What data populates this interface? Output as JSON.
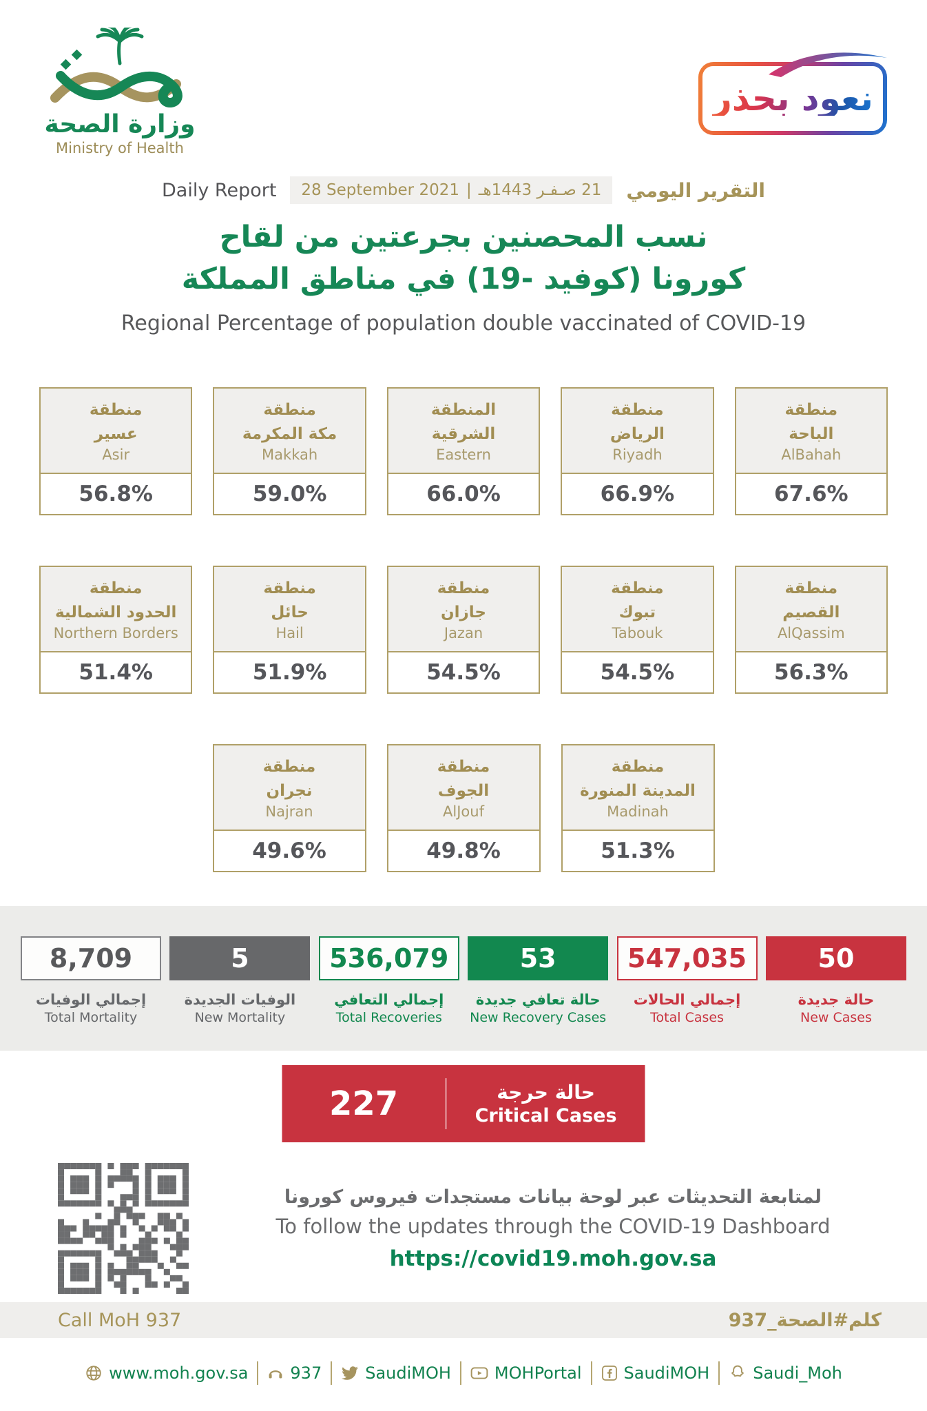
{
  "colors": {
    "green": "#168756",
    "gold": "#a6945f",
    "red": "#c8333f",
    "dark_gray": "#58595b"
  },
  "logo": {
    "title_ar": "وزارة الصحة",
    "title_en": "Ministry of Health"
  },
  "badge": {
    "text_ar": "نعود بحذر"
  },
  "report_bar": {
    "label_en": "Daily Report",
    "date_en": "28 September 2021",
    "date_sep": "|",
    "date_ar": "21 صـفـر 1443هـ",
    "label_ar": "التقرير اليومي"
  },
  "title": {
    "ar_line1": "نسب المحصنين بجرعتين من لقاح",
    "ar_line2": "كورونا (كوفيد -19) في مناطق المملكة",
    "en": "Regional Percentage of population double vaccinated of COVID-19"
  },
  "regions": {
    "cards": [
      {
        "ar1": "منطقة",
        "ar2": "عسير",
        "en": "Asir",
        "value": "56.8%"
      },
      {
        "ar1": "منطقة",
        "ar2": "مكة المكرمة",
        "en": "Makkah",
        "value": "59.0%"
      },
      {
        "ar1": "المنطقة",
        "ar2": "الشرقية",
        "en": "Eastern",
        "value": "66.0%"
      },
      {
        "ar1": "منطقة",
        "ar2": "الرياض",
        "en": "Riyadh",
        "value": "66.9%"
      },
      {
        "ar1": "منطقة",
        "ar2": "الباحة",
        "en": "AlBahah",
        "value": "67.6%"
      },
      {
        "ar1": "منطقة",
        "ar2": "الحدود الشمالية",
        "en": "Northern Borders",
        "value": "51.4%"
      },
      {
        "ar1": "منطقة",
        "ar2": "حائل",
        "en": "Hail",
        "value": "51.9%"
      },
      {
        "ar1": "منطقة",
        "ar2": "جازان",
        "en": "Jazan",
        "value": "54.5%"
      },
      {
        "ar1": "منطقة",
        "ar2": "تبوك",
        "en": "Tabouk",
        "value": "54.5%"
      },
      {
        "ar1": "منطقة",
        "ar2": "القصيم",
        "en": "AlQassim",
        "value": "56.3%"
      },
      {
        "ar1": "منطقة",
        "ar2": "نجران",
        "en": "Najran",
        "value": "49.6%"
      },
      {
        "ar1": "منطقة",
        "ar2": "الجوف",
        "en": "AlJouf",
        "value": "49.8%"
      },
      {
        "ar1": "منطقة",
        "ar2": "المدينة المنورة",
        "en": "Madinah",
        "value": "51.3%"
      }
    ]
  },
  "stats": {
    "items": [
      {
        "value": "8,709",
        "ar": "إجمالي الوفيات",
        "en": "Total Mortality"
      },
      {
        "value": "5",
        "ar": "الوفيات الجديدة",
        "en": "New Mortality"
      },
      {
        "value": "536,079",
        "ar": "إجمالي التعافي",
        "en": "Total Recoveries"
      },
      {
        "value": "53",
        "ar": "حالة تعافي جديدة",
        "en": "New Recovery Cases"
      },
      {
        "value": "547,035",
        "ar": "إجمالي الحالات",
        "en": "Total Cases"
      },
      {
        "value": "50",
        "ar": "حالة جديدة",
        "en": "New Cases"
      }
    ]
  },
  "critical": {
    "value": "227",
    "ar": "حالة حرجة",
    "en": "Critical Cases"
  },
  "dashboard": {
    "ar": "لمتابعة التحديثات عبر لوحة بيانات مستجدات فيروس كورونا",
    "en": "To follow the updates through the COVID-19 Dashboard",
    "url": "https://covid19.moh.gov.sa"
  },
  "footer": {
    "call_en": "Call MoH 937",
    "hashtag_ar": "كلم#الصحة_937"
  },
  "social": {
    "items": [
      {
        "icon": "globe-icon",
        "label": "www.moh.gov.sa"
      },
      {
        "icon": "phone-icon",
        "label": "937"
      },
      {
        "icon": "twitter-icon",
        "label": "SaudiMOH"
      },
      {
        "icon": "youtube-icon",
        "label": "MOHPortal"
      },
      {
        "icon": "facebook-icon",
        "label": "SaudiMOH"
      },
      {
        "icon": "snapchat-icon",
        "label": "Saudi_Moh"
      }
    ]
  }
}
